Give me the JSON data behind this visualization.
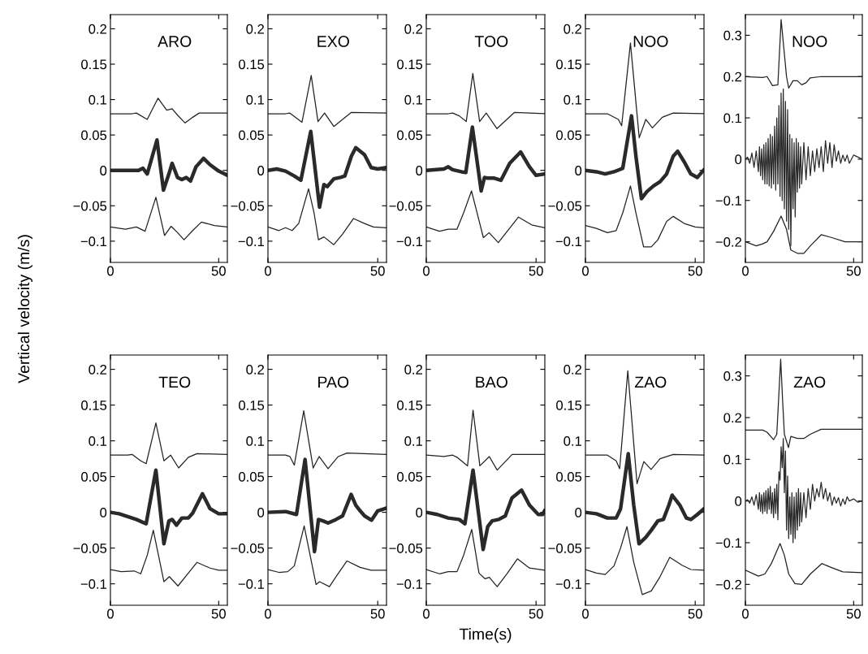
{
  "chart_data": [
    {
      "type": "line",
      "ylabel": "Vertical velocity (m/s)",
      "annotations": [
        "ARO"
      ],
      "xlim": [
        0,
        54
      ],
      "xticks": [
        0,
        50
      ],
      "ylim": [
        -0.13,
        0.22
      ],
      "yticks": [
        {
          "value": -0.1,
          "label": "−0.1"
        },
        {
          "value": -0.05,
          "label": "−0.05"
        },
        0,
        0.05,
        0.1,
        0.15,
        0.2
      ],
      "grid": false,
      "legend": false,
      "series": [
        {
          "color": "#222222",
          "x": [
            0,
            10,
            12,
            17,
            22,
            26,
            28.5,
            31,
            34.5,
            38,
            41,
            54
          ],
          "values": [
            0.08,
            0.08,
            0.081,
            0.072,
            0.102,
            0.085,
            0.087,
            0.078,
            0.067,
            0.075,
            0.081,
            0.081
          ]
        },
        {
          "color": "#2a2a2a",
          "x": [
            0,
            13,
            15,
            17,
            21.5,
            24.5,
            27,
            28.5,
            31,
            33,
            35,
            37,
            39.5,
            43,
            46,
            50,
            54
          ],
          "values": [
            0,
            0,
            0.003,
            -0.005,
            0.043,
            -0.028,
            -0.005,
            0.01,
            -0.01,
            -0.013,
            -0.01,
            -0.015,
            0.005,
            0.017,
            0.008,
            -0.001,
            -0.007
          ]
        },
        {
          "color": "#222222",
          "x": [
            0,
            7,
            12,
            16,
            21,
            25,
            28,
            31,
            34,
            38,
            42,
            48,
            54
          ],
          "values": [
            -0.08,
            -0.083,
            -0.08,
            -0.086,
            -0.038,
            -0.092,
            -0.079,
            -0.088,
            -0.098,
            -0.085,
            -0.073,
            -0.078,
            -0.08
          ]
        }
      ]
    },
    {
      "type": "line",
      "annotations": [
        "EXO"
      ],
      "xlim": [
        0,
        54
      ],
      "xticks": [
        0,
        50
      ],
      "ylim": [
        -0.13,
        0.22
      ],
      "yticks": [
        {
          "value": -0.1,
          "label": "−0.1"
        },
        {
          "value": -0.05,
          "label": "−0.05"
        },
        0,
        0.05,
        0.1,
        0.15,
        0.2
      ],
      "grid": false,
      "legend": false,
      "series": [
        {
          "color": "#222222",
          "x": [
            0,
            8,
            10,
            15.5,
            19.7,
            22.8,
            25.8,
            30,
            38,
            54
          ],
          "values": [
            0.08,
            0.08,
            0.081,
            0.068,
            0.134,
            0.069,
            0.081,
            0.062,
            0.082,
            0.081
          ]
        },
        {
          "color": "#2a2a2a",
          "x": [
            0,
            4,
            8,
            12,
            15,
            19.5,
            23.5,
            25.5,
            27,
            30,
            33,
            35,
            38,
            40,
            44,
            47,
            50,
            54
          ],
          "values": [
            0,
            0.002,
            -0.001,
            -0.008,
            -0.014,
            0.055,
            -0.052,
            -0.02,
            -0.023,
            -0.012,
            -0.01,
            -0.008,
            0.02,
            0.032,
            0.022,
            0.004,
            0.002,
            0.004
          ]
        },
        {
          "color": "#222222",
          "x": [
            0,
            5,
            8,
            11,
            14,
            18.5,
            21,
            23,
            25.5,
            30,
            34,
            39,
            44,
            48,
            54
          ],
          "values": [
            -0.08,
            -0.085,
            -0.081,
            -0.085,
            -0.075,
            -0.026,
            -0.06,
            -0.098,
            -0.094,
            -0.105,
            -0.09,
            -0.068,
            -0.075,
            -0.08,
            -0.081
          ]
        }
      ]
    },
    {
      "type": "line",
      "annotations": [
        "TOO"
      ],
      "xlim": [
        0,
        54
      ],
      "xticks": [
        0,
        50
      ],
      "ylim": [
        -0.13,
        0.22
      ],
      "yticks": [
        {
          "value": -0.1,
          "label": "−0.1"
        },
        {
          "value": -0.05,
          "label": "−0.05"
        },
        0,
        0.05,
        0.1,
        0.15,
        0.2
      ],
      "grid": false,
      "legend": false,
      "series": [
        {
          "color": "#222222",
          "x": [
            0,
            10,
            12,
            15,
            18.2,
            21.2,
            24.3,
            27.3,
            32.2,
            40.2,
            54
          ],
          "values": [
            0.08,
            0.08,
            0.081,
            0.077,
            0.069,
            0.137,
            0.069,
            0.081,
            0.059,
            0.082,
            0.08
          ]
        },
        {
          "color": "#2a2a2a",
          "x": [
            0,
            8,
            10,
            12,
            16,
            18,
            21,
            25,
            26.5,
            28,
            31,
            34,
            38,
            43,
            47,
            50,
            54
          ],
          "values": [
            0,
            0.002,
            0.005,
            0.001,
            -0.002,
            -0.003,
            0.061,
            -0.029,
            -0.01,
            -0.011,
            -0.011,
            -0.014,
            0.01,
            0.026,
            0.005,
            -0.007,
            -0.005
          ]
        },
        {
          "color": "#222222",
          "x": [
            0,
            6,
            10,
            14,
            17,
            20.6,
            26,
            28.6,
            32.8,
            42,
            48,
            54
          ],
          "values": [
            -0.08,
            -0.086,
            -0.083,
            -0.083,
            -0.06,
            -0.029,
            -0.095,
            -0.088,
            -0.102,
            -0.066,
            -0.077,
            -0.081
          ]
        }
      ]
    },
    {
      "type": "line",
      "annotations": [
        "NOO"
      ],
      "xlim": [
        0,
        54
      ],
      "xticks": [
        0,
        50
      ],
      "ylim": [
        -0.13,
        0.22
      ],
      "yticks": [
        {
          "value": -0.1,
          "label": "−0.1"
        },
        {
          "value": -0.05,
          "label": "−0.05"
        },
        0,
        0.05,
        0.1,
        0.15,
        0.2
      ],
      "grid": false,
      "legend": false,
      "series": [
        {
          "color": "#222222",
          "x": [
            0,
            10,
            15,
            16.5,
            20.5,
            24.5,
            27.5,
            30.5,
            35,
            40,
            54
          ],
          "values": [
            0.08,
            0.08,
            0.072,
            0.063,
            0.18,
            0.046,
            0.072,
            0.06,
            0.075,
            0.081,
            0.08
          ]
        },
        {
          "color": "#2a2a2a",
          "x": [
            0,
            5,
            9,
            13,
            17,
            19,
            21,
            23,
            25.5,
            28,
            31,
            34,
            37,
            40,
            42,
            45,
            48,
            51,
            54
          ],
          "values": [
            0,
            -0.002,
            -0.005,
            -0.002,
            0.003,
            0.04,
            0.077,
            0.02,
            -0.04,
            -0.03,
            -0.022,
            -0.016,
            -0.005,
            0.02,
            0.027,
            0.012,
            -0.005,
            -0.01,
            0.001
          ]
        },
        {
          "color": "#222222",
          "x": [
            0,
            5,
            10,
            14,
            17,
            20.5,
            23,
            26.5,
            30,
            33,
            37,
            40,
            45,
            50,
            54
          ],
          "values": [
            -0.078,
            -0.082,
            -0.088,
            -0.085,
            -0.06,
            -0.022,
            -0.06,
            -0.108,
            -0.108,
            -0.098,
            -0.072,
            -0.065,
            -0.075,
            -0.08,
            -0.081
          ]
        }
      ]
    },
    {
      "type": "line",
      "annotations": [
        "NOO"
      ],
      "xlim": [
        0,
        54
      ],
      "xticks": [
        0,
        50
      ],
      "ylim": [
        -0.25,
        0.35
      ],
      "yticks": [
        {
          "value": -0.2,
          "label": "−0.2"
        },
        {
          "value": -0.1,
          "label": "−0.1"
        },
        0,
        0.1,
        0.2,
        0.3
      ],
      "grid": false,
      "legend": false,
      "series": [
        {
          "color": "#222222",
          "x": [
            0,
            8,
            10,
            12.5,
            15,
            16.5,
            19,
            20,
            22,
            24,
            26,
            28,
            30,
            35,
            54
          ],
          "values": [
            0.2,
            0.198,
            0.2,
            0.178,
            0.18,
            0.338,
            0.2,
            0.172,
            0.19,
            0.19,
            0.18,
            0.185,
            0.197,
            0.2,
            0.2
          ]
        },
        {
          "color": "#2a2a2a",
          "x": [
            0,
            1,
            2,
            3,
            4,
            5,
            6,
            6.5,
            7,
            7.5,
            8,
            8.5,
            9,
            9.5,
            10,
            10.5,
            11,
            11.5,
            12,
            12.5,
            13,
            13.5,
            14,
            14.5,
            15,
            15.5,
            16,
            16.5,
            17,
            17.5,
            18,
            18.5,
            19,
            19.5,
            20,
            20.5,
            21,
            21.5,
            22,
            22.5,
            23,
            23.5,
            24,
            24.5,
            25,
            25.5,
            26,
            27,
            28,
            29,
            30,
            31,
            32,
            33,
            34,
            35,
            36,
            37,
            38,
            39,
            40,
            41,
            42,
            43,
            44,
            45,
            46,
            47,
            48,
            50,
            52,
            54
          ],
          "values": [
            0,
            0.005,
            -0.01,
            0.015,
            -0.02,
            0.02,
            -0.03,
            0.03,
            -0.04,
            0.025,
            -0.05,
            0.035,
            -0.06,
            0.04,
            -0.06,
            0.05,
            -0.065,
            0.06,
            -0.07,
            0.055,
            -0.06,
            0.08,
            -0.075,
            0.1,
            -0.06,
            0.13,
            -0.09,
            0.16,
            -0.1,
            0.17,
            -0.12,
            0.14,
            -0.15,
            0.12,
            -0.17,
            0.06,
            -0.21,
            0.05,
            -0.12,
            0.04,
            -0.14,
            0.05,
            -0.08,
            0.04,
            -0.07,
            0.03,
            -0.06,
            0.04,
            -0.05,
            0.03,
            -0.04,
            0.02,
            -0.03,
            0.025,
            -0.02,
            0.03,
            -0.03,
            0.045,
            -0.01,
            0.04,
            -0.02,
            0.035,
            -0.005,
            0.02,
            -0.01,
            0.01,
            -0.005,
            0.01,
            -0.01,
            0.01,
            0.005,
            0
          ]
        },
        {
          "color": "#222222",
          "x": [
            0,
            5,
            8,
            10,
            13,
            16.5,
            19,
            21,
            24,
            27,
            30,
            35,
            40,
            46,
            54
          ],
          "values": [
            -0.2,
            -0.21,
            -0.205,
            -0.2,
            -0.175,
            -0.138,
            -0.17,
            -0.22,
            -0.228,
            -0.228,
            -0.21,
            -0.183,
            -0.19,
            -0.2,
            -0.2
          ]
        }
      ]
    },
    {
      "type": "line",
      "annotations": [
        "TEO"
      ],
      "xlim": [
        0,
        54
      ],
      "xticks": [
        0,
        50
      ],
      "ylim": [
        -0.13,
        0.22
      ],
      "yticks": [
        {
          "value": -0.1,
          "label": "−0.1"
        },
        {
          "value": -0.05,
          "label": "−0.05"
        },
        0,
        0.05,
        0.1,
        0.15,
        0.2
      ],
      "grid": false,
      "legend": false,
      "series": [
        {
          "color": "#222222",
          "x": [
            0,
            8,
            10,
            14,
            16.5,
            21,
            24.7,
            27.8,
            31.5,
            36,
            40,
            54
          ],
          "values": [
            0.08,
            0.08,
            0.081,
            0.072,
            0.068,
            0.125,
            0.072,
            0.08,
            0.062,
            0.077,
            0.082,
            0.081
          ]
        },
        {
          "color": "#2a2a2a",
          "x": [
            0,
            4,
            8,
            12,
            16.5,
            21,
            24.7,
            27,
            28.5,
            30.5,
            33,
            36,
            38,
            42.5,
            46,
            50,
            54
          ],
          "values": [
            0,
            -0.002,
            -0.006,
            -0.01,
            -0.016,
            0.059,
            -0.044,
            -0.012,
            -0.01,
            -0.018,
            -0.008,
            -0.008,
            -0.001,
            0.026,
            0.005,
            -0.002,
            -0.002
          ]
        },
        {
          "color": "#222222",
          "x": [
            0,
            5,
            11,
            14,
            17,
            19.8,
            24.7,
            27.2,
            31.2,
            36,
            40,
            46,
            50,
            54
          ],
          "values": [
            -0.08,
            -0.083,
            -0.082,
            -0.086,
            -0.06,
            -0.025,
            -0.097,
            -0.09,
            -0.103,
            -0.085,
            -0.07,
            -0.078,
            -0.081,
            -0.081
          ]
        }
      ]
    },
    {
      "type": "line",
      "annotations": [
        "PAO"
      ],
      "xlim": [
        0,
        54
      ],
      "xticks": [
        0,
        50
      ],
      "ylim": [
        -0.13,
        0.22
      ],
      "yticks": [
        {
          "value": -0.1,
          "label": "−0.1"
        },
        {
          "value": -0.05,
          "label": "−0.05"
        },
        0,
        0.05,
        0.1,
        0.15,
        0.2
      ],
      "grid": false,
      "legend": false,
      "series": [
        {
          "color": "#222222",
          "x": [
            0,
            8,
            10,
            12,
            16.3,
            20.6,
            23.3,
            27.4,
            32,
            36,
            54
          ],
          "values": [
            0.08,
            0.08,
            0.078,
            0.066,
            0.142,
            0.062,
            0.078,
            0.061,
            0.078,
            0.083,
            0.081
          ]
        },
        {
          "color": "#2a2a2a",
          "x": [
            0,
            8,
            13,
            16.9,
            21.2,
            23,
            25,
            27.4,
            31,
            34,
            37.9,
            40,
            42,
            44,
            47.2,
            50,
            54
          ],
          "values": [
            0,
            0.001,
            -0.003,
            0.074,
            -0.055,
            -0.01,
            -0.012,
            -0.015,
            -0.01,
            -0.005,
            0.025,
            0.01,
            0.002,
            -0.005,
            -0.011,
            0.002,
            0.006
          ]
        },
        {
          "color": "#222222",
          "x": [
            0,
            5,
            9,
            12,
            16.5,
            21.9,
            23.5,
            28,
            31,
            36,
            42,
            47,
            54
          ],
          "values": [
            -0.08,
            -0.084,
            -0.083,
            -0.075,
            -0.019,
            -0.101,
            -0.097,
            -0.104,
            -0.09,
            -0.068,
            -0.077,
            -0.081,
            -0.081
          ]
        }
      ]
    },
    {
      "type": "line",
      "xlabel": "Time(s)",
      "annotations": [
        "BAO"
      ],
      "xlim": [
        0,
        54
      ],
      "xticks": [
        0,
        50
      ],
      "ylim": [
        -0.13,
        0.22
      ],
      "yticks": [
        {
          "value": -0.1,
          "label": "−0.1"
        },
        {
          "value": -0.05,
          "label": "−0.05"
        },
        0,
        0.05,
        0.1,
        0.15,
        0.2
      ],
      "grid": false,
      "legend": false,
      "series": [
        {
          "color": "#222222",
          "x": [
            0,
            8,
            12,
            14,
            18.8,
            21.3,
            24.4,
            28.7,
            32.3,
            39.1,
            54
          ],
          "values": [
            0.08,
            0.078,
            0.08,
            0.077,
            0.065,
            0.143,
            0.065,
            0.078,
            0.059,
            0.081,
            0.081
          ]
        },
        {
          "color": "#2a2a2a",
          "x": [
            0,
            5,
            10,
            15,
            17.6,
            21.3,
            25.9,
            28,
            30,
            33,
            36,
            39,
            43.4,
            47,
            51,
            53,
            54
          ],
          "values": [
            0,
            -0.003,
            -0.008,
            -0.01,
            -0.016,
            0.059,
            -0.052,
            -0.02,
            -0.012,
            -0.01,
            -0.005,
            0.02,
            0.031,
            0.01,
            -0.003,
            -0.003,
            0.003
          ]
        },
        {
          "color": "#222222",
          "x": [
            0,
            6,
            10,
            14,
            17,
            20.7,
            24,
            26.8,
            28.7,
            32.3,
            37,
            41.5,
            47,
            54
          ],
          "values": [
            -0.08,
            -0.086,
            -0.083,
            -0.083,
            -0.06,
            -0.024,
            -0.085,
            -0.093,
            -0.091,
            -0.104,
            -0.085,
            -0.065,
            -0.078,
            -0.081
          ]
        }
      ]
    },
    {
      "type": "line",
      "annotations": [
        "ZAO"
      ],
      "xlim": [
        0,
        54
      ],
      "xticks": [
        0,
        50
      ],
      "ylim": [
        -0.13,
        0.22
      ],
      "yticks": [
        {
          "value": -0.1,
          "label": "−0.1"
        },
        {
          "value": -0.05,
          "label": "−0.05"
        },
        0,
        0.05,
        0.1,
        0.15,
        0.2
      ],
      "grid": false,
      "legend": false,
      "series": [
        {
          "color": "#222222",
          "x": [
            0,
            10,
            14,
            15.6,
            19.3,
            23.5,
            26.6,
            29.9,
            34,
            40,
            54
          ],
          "values": [
            0.08,
            0.08,
            0.072,
            0.061,
            0.198,
            0.04,
            0.071,
            0.06,
            0.075,
            0.081,
            0.08
          ]
        },
        {
          "color": "#2a2a2a",
          "x": [
            0,
            5,
            10,
            14,
            16,
            19.5,
            22,
            24.4,
            27.5,
            30,
            33,
            35.5,
            38,
            39.5,
            43,
            46,
            48,
            51,
            54
          ],
          "values": [
            0,
            -0.002,
            -0.008,
            -0.008,
            0.005,
            0.082,
            0.01,
            -0.044,
            -0.035,
            -0.025,
            -0.012,
            -0.01,
            0.01,
            0.024,
            0.01,
            -0.008,
            -0.01,
            -0.003,
            0.005
          ]
        },
        {
          "color": "#222222",
          "x": [
            0,
            5,
            9,
            13,
            16,
            18.9,
            22,
            25.9,
            30,
            34,
            38.4,
            44,
            48,
            54
          ],
          "values": [
            -0.08,
            -0.085,
            -0.087,
            -0.075,
            -0.05,
            -0.02,
            -0.07,
            -0.115,
            -0.11,
            -0.09,
            -0.063,
            -0.074,
            -0.08,
            -0.081
          ]
        }
      ]
    },
    {
      "type": "line",
      "annotations": [
        "ZAO"
      ],
      "xlim": [
        0,
        54
      ],
      "xticks": [
        0,
        50
      ],
      "ylim": [
        -0.25,
        0.35
      ],
      "yticks": [
        {
          "value": -0.2,
          "label": "−0.2"
        },
        {
          "value": -0.1,
          "label": "−0.1"
        },
        0,
        0.1,
        0.2,
        0.3
      ],
      "grid": false,
      "legend": false,
      "series": [
        {
          "color": "#222222",
          "x": [
            0,
            8,
            10,
            13,
            14.5,
            15.3,
            16.3,
            17.2,
            18,
            19.9,
            21,
            24,
            27,
            30,
            35,
            54
          ],
          "values": [
            0.17,
            0.17,
            0.165,
            0.147,
            0.16,
            0.24,
            0.34,
            0.24,
            0.16,
            0.128,
            0.155,
            0.15,
            0.15,
            0.16,
            0.172,
            0.172
          ]
        },
        {
          "color": "#2a2a2a",
          "x": [
            0,
            1,
            2,
            3,
            4,
            5,
            6,
            6.5,
            7,
            7.5,
            8,
            8.5,
            9,
            9.5,
            10,
            10.5,
            11,
            11.5,
            12,
            12.5,
            13,
            13.5,
            14,
            14.5,
            15,
            15.5,
            16,
            16.5,
            17,
            17.5,
            18,
            18.5,
            19,
            19.5,
            20,
            20.5,
            21,
            21.5,
            22,
            22.5,
            23,
            23.5,
            24,
            24.5,
            25,
            25.5,
            26,
            27,
            28,
            29,
            30,
            31,
            32,
            33,
            34,
            35,
            36,
            37,
            38,
            39,
            40,
            41,
            42,
            43,
            44,
            45,
            46,
            47,
            48,
            50,
            52,
            54
          ],
          "values": [
            0,
            0.003,
            -0.005,
            0.01,
            -0.01,
            0.015,
            -0.02,
            0.02,
            -0.025,
            0.015,
            -0.03,
            0.02,
            -0.025,
            0.025,
            -0.03,
            0.03,
            -0.02,
            0.035,
            -0.03,
            0.02,
            -0.04,
            0.03,
            -0.03,
            0.04,
            -0.045,
            0.07,
            0.05,
            0.13,
            0.08,
            0.15,
            0.02,
            0.12,
            -0.07,
            0.06,
            -0.09,
            0.01,
            -0.08,
            0.02,
            -0.1,
            0.01,
            -0.09,
            0.02,
            -0.07,
            0.03,
            -0.06,
            0.02,
            -0.05,
            0.02,
            -0.04,
            0.03,
            -0.02,
            0.04,
            0.0,
            0.03,
            0.01,
            0.045,
            0.005,
            0.03,
            0.0,
            0.02,
            -0.01,
            0.01,
            -0.005,
            0.008,
            -0.012,
            0.005,
            -0.008,
            0.01,
            0.0,
            0.005,
            -0.003,
            0.0
          ]
        },
        {
          "color": "#222222",
          "x": [
            0,
            6,
            9,
            12,
            16,
            18,
            20,
            22.9,
            26,
            30,
            35.3,
            40,
            45,
            54
          ],
          "values": [
            -0.166,
            -0.18,
            -0.175,
            -0.15,
            -0.102,
            -0.13,
            -0.175,
            -0.198,
            -0.2,
            -0.175,
            -0.15,
            -0.16,
            -0.17,
            -0.172
          ]
        }
      ]
    }
  ]
}
